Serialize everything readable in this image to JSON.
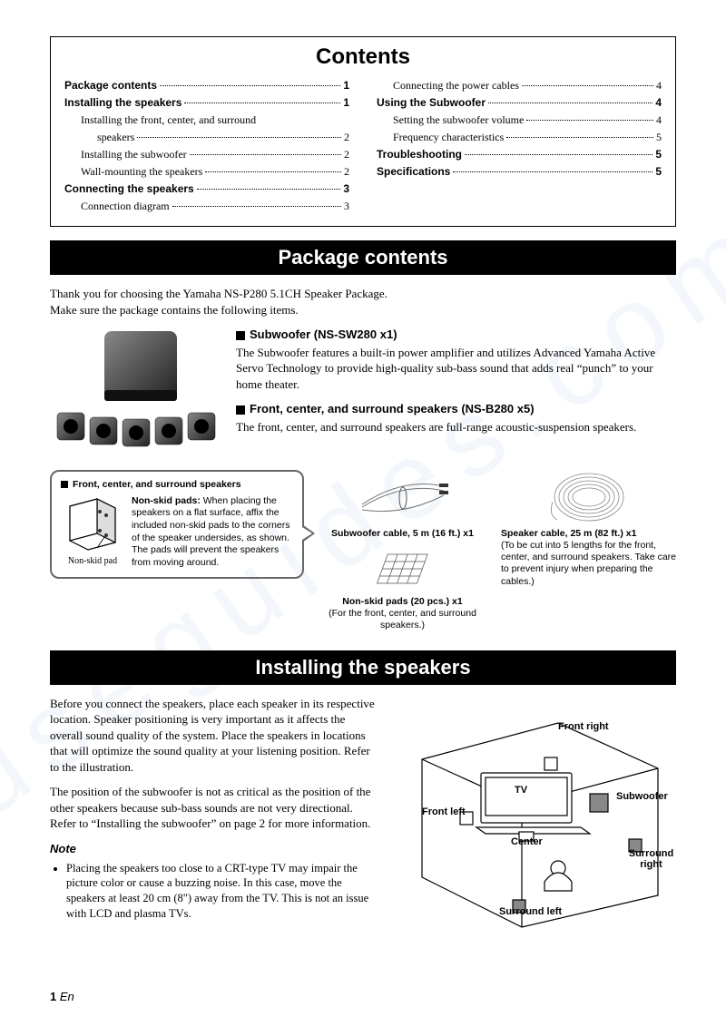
{
  "watermark": "useguides.com",
  "contents": {
    "title": "Contents",
    "left": [
      {
        "label": "Package contents",
        "page": "1",
        "bold": true,
        "indent": 0
      },
      {
        "label": "Installing the speakers",
        "page": "1",
        "bold": true,
        "indent": 0
      },
      {
        "label": "Installing the front, center, and surround",
        "page": "",
        "bold": false,
        "indent": 1,
        "nopage": true
      },
      {
        "label": "speakers",
        "page": "2",
        "bold": false,
        "indent": 2
      },
      {
        "label": "Installing the subwoofer",
        "page": "2",
        "bold": false,
        "indent": 1
      },
      {
        "label": "Wall-mounting the speakers",
        "page": "2",
        "bold": false,
        "indent": 1
      },
      {
        "label": "Connecting the speakers",
        "page": "3",
        "bold": true,
        "indent": 0
      },
      {
        "label": "Connection diagram",
        "page": "3",
        "bold": false,
        "indent": 1
      }
    ],
    "right": [
      {
        "label": "Connecting the power cables",
        "page": "4",
        "bold": false,
        "indent": 1
      },
      {
        "label": "Using the Subwoofer",
        "page": "4",
        "bold": true,
        "indent": 0
      },
      {
        "label": "Setting the subwoofer volume",
        "page": "4",
        "bold": false,
        "indent": 1
      },
      {
        "label": "Frequency characteristics",
        "page": "5",
        "bold": false,
        "indent": 1
      },
      {
        "label": "Troubleshooting",
        "page": "5",
        "bold": true,
        "indent": 0
      },
      {
        "label": "Specifications",
        "page": "5",
        "bold": true,
        "indent": 0
      }
    ]
  },
  "package": {
    "header": "Package contents",
    "intro1": "Thank you for choosing the Yamaha NS-P280 5.1CH Speaker Package.",
    "intro2": "Make sure the package contains the following items.",
    "sub_title": "Subwoofer (NS-SW280 x1)",
    "sub_desc": "The Subwoofer features a built-in power amplifier and utilizes Advanced Yamaha Active Servo Technology to provide high-quality sub-bass sound that adds real “punch” to your home theater.",
    "spk_title": "Front, center, and surround speakers (NS-B280 x5)",
    "spk_desc": "The front, center, and surround speakers are full-range acoustic-suspension speakers.",
    "callout_title": "Front, center, and surround speakers",
    "callout_label": "Non-skid pad",
    "callout_bold": "Non-skid pads:",
    "callout_text": "When placing the speakers on a flat surface, affix the included non-skid pads to the corners of the speaker undersides, as shown. The pads will prevent the speakers from moving around.",
    "cable1_title": "Subwoofer cable, 5 m (16 ft.) x1",
    "pads_title": "Non-skid pads (20 pcs.) x1",
    "pads_desc": "(For the front, center, and surround speakers.)",
    "cable2_title": "Speaker cable, 25 m (82 ft.) x1",
    "cable2_desc": "(To be cut into 5 lengths for the front, center, and surround speakers. Take care to prevent injury when preparing the cables.)"
  },
  "install": {
    "header": "Installing the speakers",
    "para1": "Before you connect the speakers, place each speaker in its respective location. Speaker positioning is very important as it affects the overall sound quality of the system. Place the speakers in locations that will optimize the sound quality at your listening position. Refer to the illustration.",
    "para2": "The position of the subwoofer is not as critical as the position of the other speakers because sub-bass sounds are not very directional. Refer to “Installing the subwoofer” on page 2 for more information.",
    "note_label": "Note",
    "note1": "Placing the speakers too close to a CRT-type TV may impair the picture color or cause a buzzing noise. In this case, move the speakers at least 20 cm (8\") away from the TV. This is not an issue with LCD and plasma TVs.",
    "labels": {
      "front_right": "Front right",
      "front_left": "Front left",
      "tv": "TV",
      "center": "Center",
      "subwoofer": "Subwoofer",
      "surround_right": "Surround right",
      "surround_left": "Surround left"
    }
  },
  "page_number": "1",
  "page_lang": "En"
}
